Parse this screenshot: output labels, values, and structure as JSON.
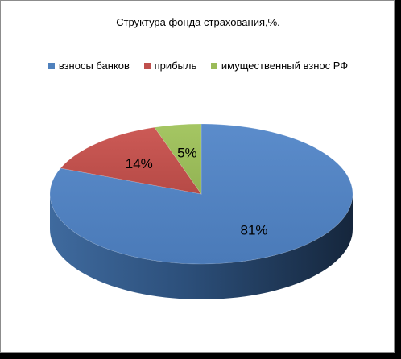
{
  "chart_data": {
    "type": "pie",
    "title": "Структура фонда страхования,%.",
    "legend_position": "top",
    "slices": [
      {
        "label": "взносы банков",
        "value": 81,
        "display": "81%",
        "color": "#4f81bd"
      },
      {
        "label": "прибыль",
        "value": 14,
        "display": "14%",
        "color": "#c0504d"
      },
      {
        "label": "имущественный взнос РФ",
        "value": 5,
        "display": "5%",
        "color": "#9bbb59"
      }
    ]
  }
}
